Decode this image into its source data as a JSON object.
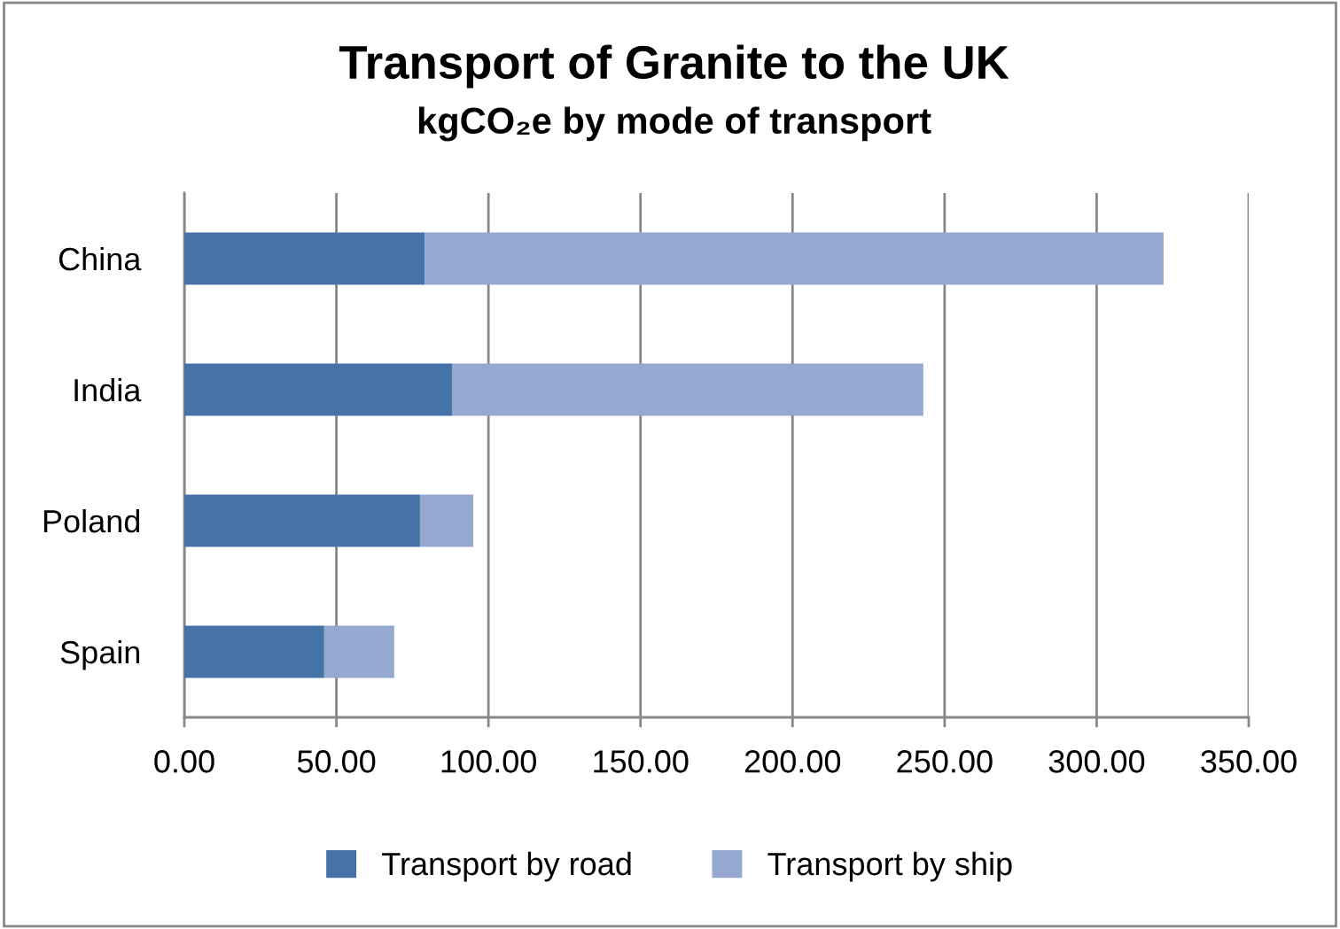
{
  "chart_data": {
    "type": "bar",
    "orientation": "horizontal",
    "stacked": true,
    "title": "Transport of Granite to the UK",
    "subtitle": "kgCO₂e by mode of transport",
    "categories": [
      "China",
      "India",
      "Poland",
      "Spain"
    ],
    "series": [
      {
        "name": "Transport by road",
        "color": "#4573a7",
        "values": [
          79,
          88,
          77.5,
          46
        ]
      },
      {
        "name": "Transport by ship",
        "color": "#95a9d0",
        "values": [
          243,
          155,
          17.5,
          23
        ]
      }
    ],
    "xlim": [
      0,
      350
    ],
    "xticks": [
      {
        "value": 0,
        "label": "0.00"
      },
      {
        "value": 50,
        "label": "50.00"
      },
      {
        "value": 100,
        "label": "100.00"
      },
      {
        "value": 150,
        "label": "150.00"
      },
      {
        "value": 200,
        "label": "200.00"
      },
      {
        "value": 250,
        "label": "250.00"
      },
      {
        "value": 300,
        "label": "300.00"
      },
      {
        "value": 350,
        "label": "350.00"
      }
    ],
    "grid": "x",
    "legend": "bottom"
  }
}
